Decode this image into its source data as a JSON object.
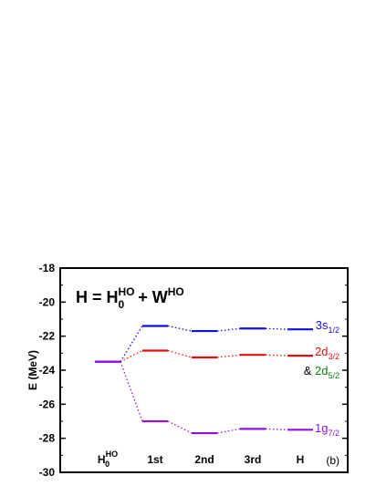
{
  "chart_data": {
    "type": "line",
    "ylabel": "E (MeV)",
    "ylim": [
      -30,
      -18
    ],
    "yticks": [
      -30,
      -28,
      -26,
      -24,
      -22,
      -20,
      -18
    ],
    "categories": [
      "H0HO",
      "1st",
      "2nd",
      "3rd",
      "H"
    ],
    "category_labels": [
      {
        "base": "H",
        "sub": "0",
        "sup": "HO"
      },
      {
        "base": "1st",
        "sub": "",
        "sup": ""
      },
      {
        "base": "2nd",
        "sub": "",
        "sup": ""
      },
      {
        "base": "3rd",
        "sub": "",
        "sup": ""
      },
      {
        "base": "H",
        "sub": "",
        "sup": ""
      }
    ],
    "formula": {
      "lhs": "H = H",
      "sub": "0",
      "sup1": "HO",
      "mid": " + W",
      "sup2": "HO"
    },
    "panel_label": "(b)",
    "grid": false,
    "series": [
      {
        "key": "3s",
        "color": "#1010e0",
        "values": [
          -23.5,
          -21.4,
          -21.7,
          -21.55,
          -21.6
        ]
      },
      {
        "key": "2d",
        "color": "#e01010",
        "values": [
          -23.5,
          -22.85,
          -23.25,
          -23.1,
          -23.15
        ]
      },
      {
        "key": "1g",
        "color": "#9010e0",
        "values": [
          -23.5,
          -27.0,
          -27.7,
          -27.45,
          -27.5
        ]
      }
    ],
    "state_labels": [
      {
        "base": "3s",
        "sub": "1/2",
        "color": "#1010e0"
      },
      {
        "base": "2d",
        "sub": "3/2",
        "color": "#e01010"
      },
      {
        "prefix": "& ",
        "base": "2d",
        "sub": "5/2",
        "color": "#108010"
      },
      {
        "base": "1g",
        "sub": "7/2",
        "color": "#9010e0"
      }
    ]
  }
}
